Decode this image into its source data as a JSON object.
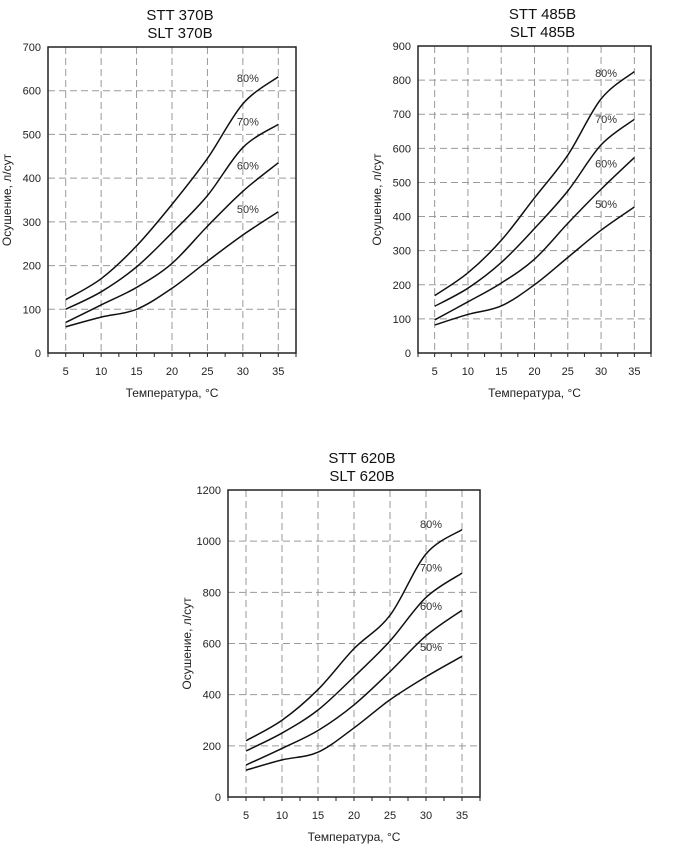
{
  "chart_data": [
    {
      "type": "line",
      "title": [
        "STT 370B",
        "SLT 370B"
      ],
      "xlabel": "Температура, °C",
      "ylabel": "Осушение, л/сут",
      "x": [
        5,
        10,
        15,
        20,
        25,
        30,
        35
      ],
      "xticks": [
        5,
        10,
        15,
        20,
        25,
        30,
        35
      ],
      "yticks": [
        0,
        100,
        200,
        300,
        400,
        500,
        600,
        700
      ],
      "xlim": [
        2.5,
        37.5
      ],
      "ylim": [
        0,
        700
      ],
      "grid": true,
      "series": [
        {
          "name": "80%",
          "values": [
            122,
            170,
            245,
            340,
            445,
            570,
            632
          ]
        },
        {
          "name": "70%",
          "values": [
            100,
            140,
            197,
            275,
            360,
            470,
            523
          ]
        },
        {
          "name": "60%",
          "values": [
            70,
            110,
            150,
            205,
            290,
            370,
            435
          ]
        },
        {
          "name": "50%",
          "values": [
            60,
            82,
            100,
            148,
            210,
            270,
            323
          ]
        }
      ]
    },
    {
      "type": "line",
      "title": [
        "STT 485B",
        "SLT 485B"
      ],
      "xlabel": "Температура, °C",
      "ylabel": "Осушение, л/сут",
      "x": [
        5,
        10,
        15,
        20,
        25,
        30,
        35
      ],
      "xticks": [
        5,
        10,
        15,
        20,
        25,
        30,
        35
      ],
      "yticks": [
        0,
        100,
        200,
        300,
        400,
        500,
        600,
        700,
        800,
        900
      ],
      "xlim": [
        2.5,
        37.5
      ],
      "ylim": [
        0,
        900
      ],
      "grid": true,
      "series": [
        {
          "name": "80%",
          "values": [
            168,
            235,
            330,
            455,
            580,
            745,
            825
          ]
        },
        {
          "name": "70%",
          "values": [
            137,
            190,
            265,
            365,
            475,
            610,
            685
          ]
        },
        {
          "name": "60%",
          "values": [
            97,
            150,
            205,
            275,
            380,
            480,
            573
          ]
        },
        {
          "name": "50%",
          "values": [
            82,
            113,
            138,
            200,
            280,
            360,
            428
          ]
        }
      ]
    },
    {
      "type": "line",
      "title": [
        "STT 620B",
        "SLT 620B"
      ],
      "xlabel": "Температура, °C",
      "ylabel": "Осушение, л/сут",
      "x": [
        5,
        10,
        15,
        20,
        25,
        30,
        35
      ],
      "xticks": [
        5,
        10,
        15,
        20,
        25,
        30,
        35
      ],
      "yticks": [
        0,
        200,
        400,
        600,
        800,
        1000,
        1200
      ],
      "xlim": [
        2.5,
        37.5
      ],
      "ylim": [
        0,
        1200
      ],
      "grid": true,
      "series": [
        {
          "name": "80%",
          "values": [
            220,
            300,
            420,
            580,
            710,
            950,
            1045
          ]
        },
        {
          "name": "70%",
          "values": [
            180,
            250,
            340,
            470,
            610,
            780,
            875
          ]
        },
        {
          "name": "60%",
          "values": [
            125,
            190,
            260,
            360,
            490,
            630,
            730
          ]
        },
        {
          "name": "50%",
          "values": [
            105,
            145,
            175,
            270,
            380,
            470,
            550
          ]
        }
      ]
    }
  ]
}
